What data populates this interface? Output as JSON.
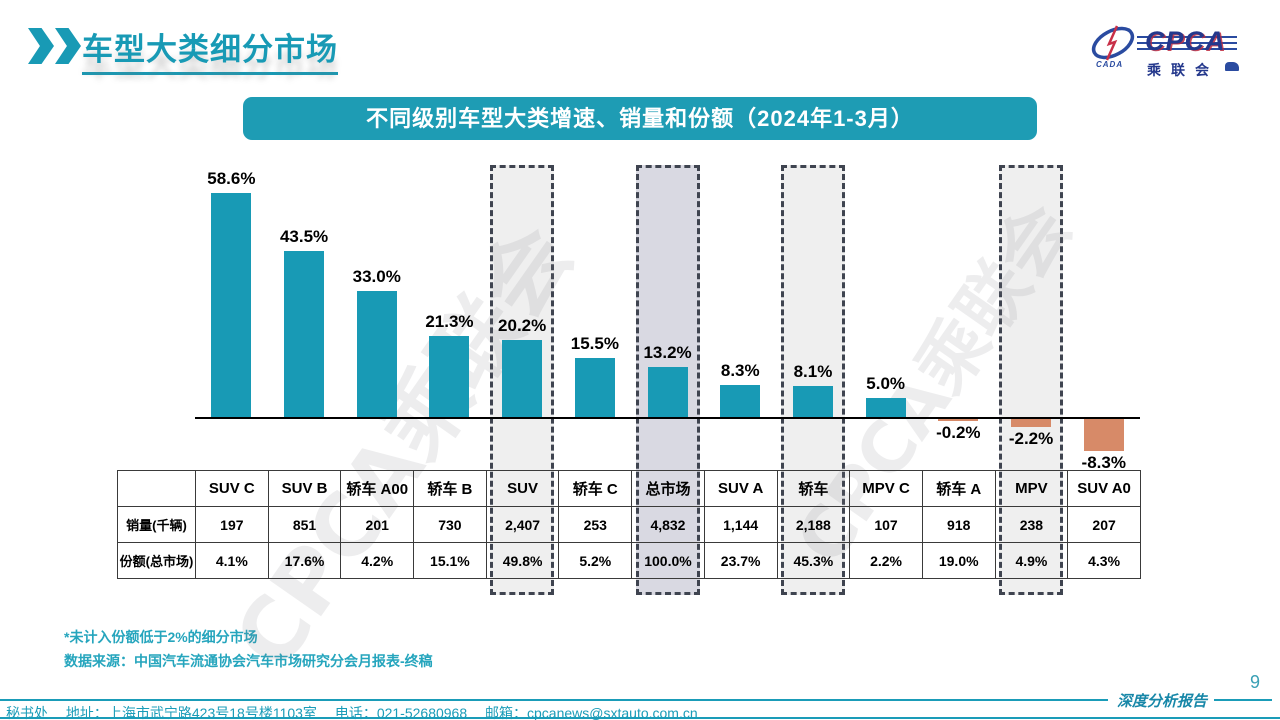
{
  "header": {
    "title": "车型大类细分市场"
  },
  "logo": {
    "swoosh_label": "CADA",
    "acronym": "CPCA",
    "chinese_name": "乘联会"
  },
  "banner": {
    "title": "不同级别车型大类增速、销量和份额（2024年1-3月）"
  },
  "watermark_text": "CPCA乘联会",
  "chart_data": {
    "type": "bar",
    "title": "不同级别车型大类增速、销量和份额（2024年1-3月）",
    "categories": [
      "SUV C",
      "SUV B",
      "轿车 A00",
      "轿车 B",
      "SUV",
      "轿车 C",
      "总市场",
      "SUV A",
      "轿车",
      "MPV C",
      "轿车 A",
      "MPV",
      "SUV A0"
    ],
    "series": [
      {
        "name": "增速",
        "values": [
          58.6,
          43.5,
          33.0,
          21.3,
          20.2,
          15.5,
          13.2,
          8.3,
          8.1,
          5.0,
          -0.2,
          -2.2,
          -8.3
        ],
        "labels": [
          "58.6%",
          "43.5%",
          "33.0%",
          "21.3%",
          "20.2%",
          "15.5%",
          "13.2%",
          "8.3%",
          "8.1%",
          "5.0%",
          "-0.2%",
          "-2.2%",
          "-8.3%"
        ]
      },
      {
        "name": "销量(千辆)",
        "values": [
          "197",
          "851",
          "201",
          "730",
          "2,407",
          "253",
          "4,832",
          "1,144",
          "2,188",
          "107",
          "918",
          "238",
          "207"
        ]
      },
      {
        "name": "份额(总市场)",
        "values": [
          "4.1%",
          "17.6%",
          "4.2%",
          "15.1%",
          "49.8%",
          "5.2%",
          "100.0%",
          "23.7%",
          "45.3%",
          "2.2%",
          "19.0%",
          "4.9%",
          "4.3%"
        ]
      }
    ],
    "table_row_headers": [
      "销量(千辆)",
      "份额(总市场)"
    ],
    "highlighted_columns": [
      4,
      6,
      8,
      11
    ],
    "highlight_fills": {
      "4": "#efefef",
      "6": "#d9d9e2",
      "8": "#efefef",
      "11": "#efefef"
    },
    "positive_color": "#189ab5",
    "negative_color": "#d78a68",
    "ylim": [
      -10,
      62
    ],
    "grid": false,
    "legend": false
  },
  "footnotes": {
    "note1": "*未计入份额低于2%的细分市场",
    "note2": "数据来源：中国汽车流通协会汽车市场研究分会月报表-终稿"
  },
  "footer": {
    "text": "秘书处　 地址：上海市武宁路423号18号楼1103室 　电话：021-52680968　  邮箱：cpcanews@sxtauto.com.cn",
    "report_label": "深度分析报告",
    "page_number": "9"
  }
}
